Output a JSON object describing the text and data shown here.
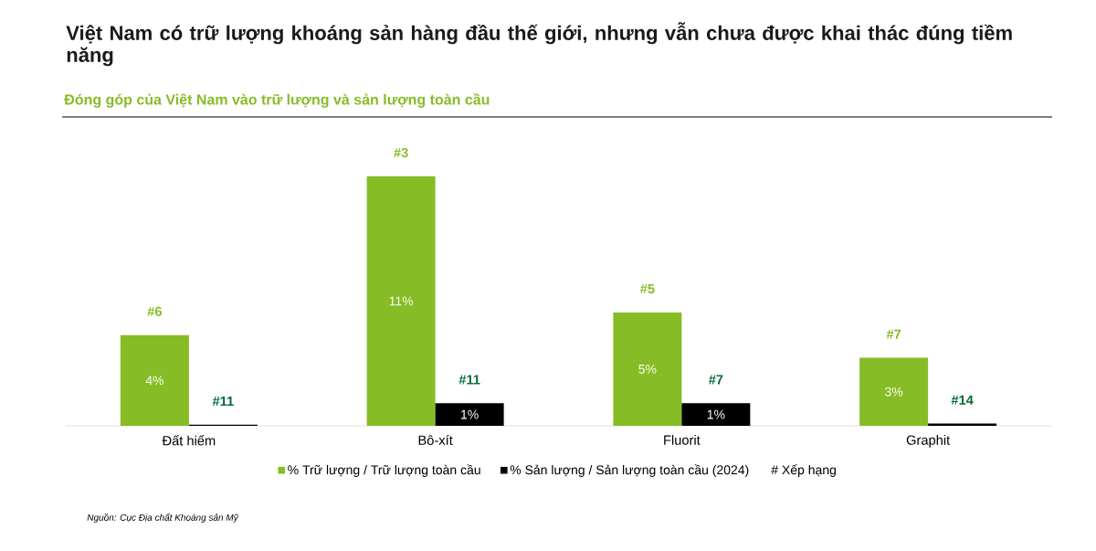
{
  "chart_data": {
    "type": "bar",
    "title": "Việt Nam có trữ lượng khoáng sản hàng đầu thế giới, nhưng vẫn chưa được khai thác đúng tiềm năng",
    "subtitle": "Đóng góp của Việt Nam vào trữ lượng và sản lượng toàn cầu",
    "categories": [
      "Đất hiếm",
      "Bô-xít",
      "Fluorit",
      "Graphit"
    ],
    "series": [
      {
        "name": "% Trữ lượng / Trữ lượng toàn cầu",
        "color": "#86bc25",
        "values": [
          4,
          11,
          5,
          3
        ],
        "value_labels": [
          "4%",
          "11%",
          "5%",
          "3%"
        ]
      },
      {
        "name": "% Sản lượng / Sản lượng toàn cầu (2024)",
        "color": "#000000",
        "values": [
          0.05,
          1,
          1,
          0.1
        ],
        "value_labels": [
          null,
          "1%",
          "1%",
          null
        ]
      }
    ],
    "annotations": [
      {
        "text": "#6",
        "x": "Đất hiếm",
        "y": 4
      },
      {
        "text": "#11",
        "x": "Đất hiếm",
        "y": 0.05
      },
      {
        "text": "#3",
        "x": "Bô-xít",
        "y": 11
      },
      {
        "text": "#11",
        "x": "Bô-xít",
        "y": 1
      },
      {
        "text": "#5",
        "x": "Fluorit",
        "y": 5
      },
      {
        "text": "#7",
        "x": "Fluorit",
        "y": 1
      },
      {
        "text": "#7",
        "x": "Graphit",
        "y": 3
      },
      {
        "text": "#14",
        "x": "Graphit",
        "y": 0.1
      },
      "# Xếp hạng",
      "Nguồn: Cục Địa chất Khoáng sản Mỹ"
    ],
    "legend": "bottom"
  }
}
